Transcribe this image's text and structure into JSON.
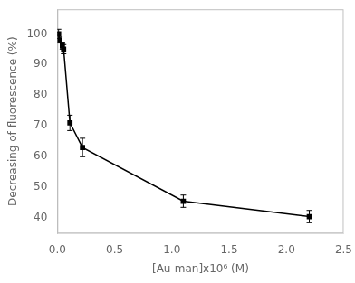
{
  "chart_data": {
    "type": "line",
    "x": [
      0.011,
      0.022,
      0.044,
      0.055,
      0.11,
      0.22,
      1.1,
      2.2
    ],
    "values": [
      100,
      98,
      96,
      95,
      71,
      63,
      45.5,
      40.5
    ],
    "yerr": [
      1.5,
      1.0,
      1.0,
      1.5,
      2.5,
      3.0,
      2.0,
      2.0
    ],
    "xlabel": "[Au-man]x10⁶ (M)",
    "ylabel": "Decreasing of fluorescence (%)",
    "xlim": [
      0,
      2.5
    ],
    "ylim": [
      35,
      108
    ],
    "xticks": [
      {
        "value": 0,
        "label": "0.0"
      },
      0.5,
      {
        "value": 1,
        "label": "1.0"
      },
      1.5,
      {
        "value": 2,
        "label": "2.0"
      },
      2.5
    ],
    "yticks": [
      40,
      50,
      60,
      70,
      80,
      90,
      100
    ],
    "color": "black",
    "marker": "square",
    "grid": false
  }
}
